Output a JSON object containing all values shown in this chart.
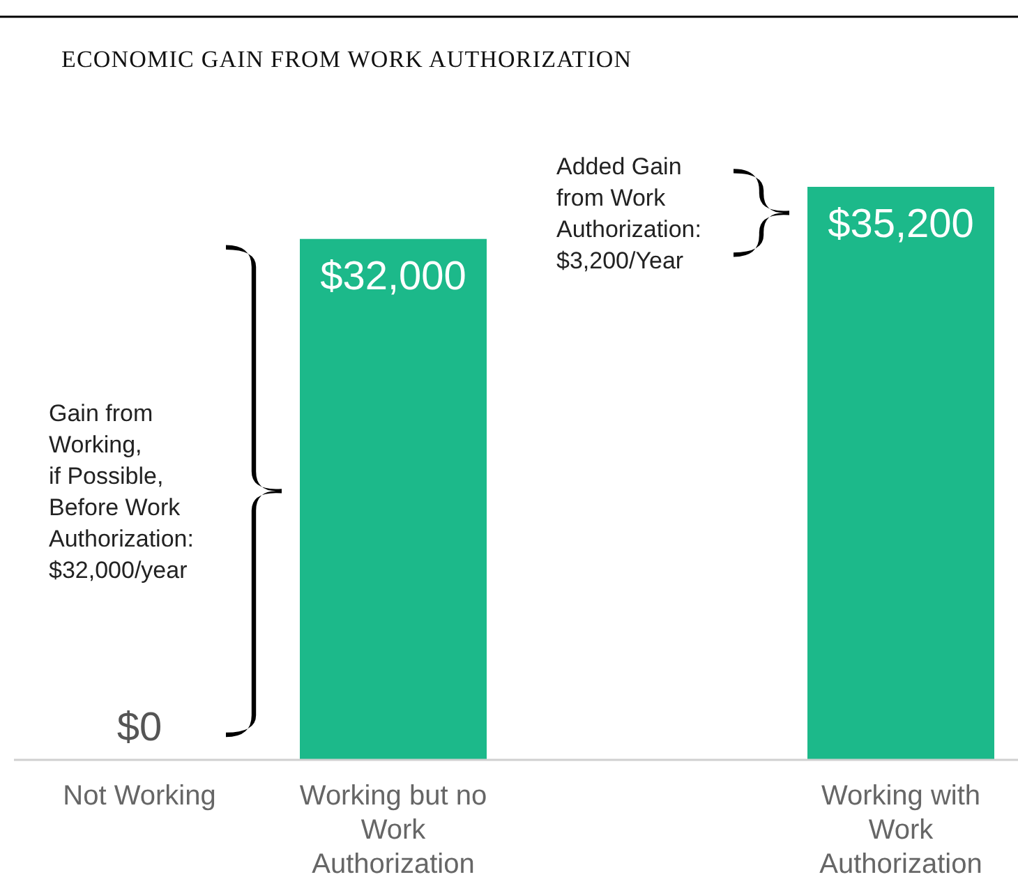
{
  "chart_data": {
    "type": "bar",
    "title": "ECONOMIC GAIN FROM WORK AUTHORIZATION",
    "categories": [
      "Not Working",
      "Working but no Work Authorization",
      null,
      "Working with Work Authorization"
    ],
    "values": [
      0,
      32000,
      null,
      35200
    ],
    "value_labels": [
      "$0",
      "$32,000",
      null,
      "$35,200"
    ],
    "color": "#1cb98a",
    "relative": false,
    "annotations": [
      "Gain from\nWorking,\nif Possible,\nBefore Work\nAuthorization:\n$32,000/year",
      "Added Gain\nfrom Work\nAuthorization:\n$3,200/Year"
    ]
  }
}
